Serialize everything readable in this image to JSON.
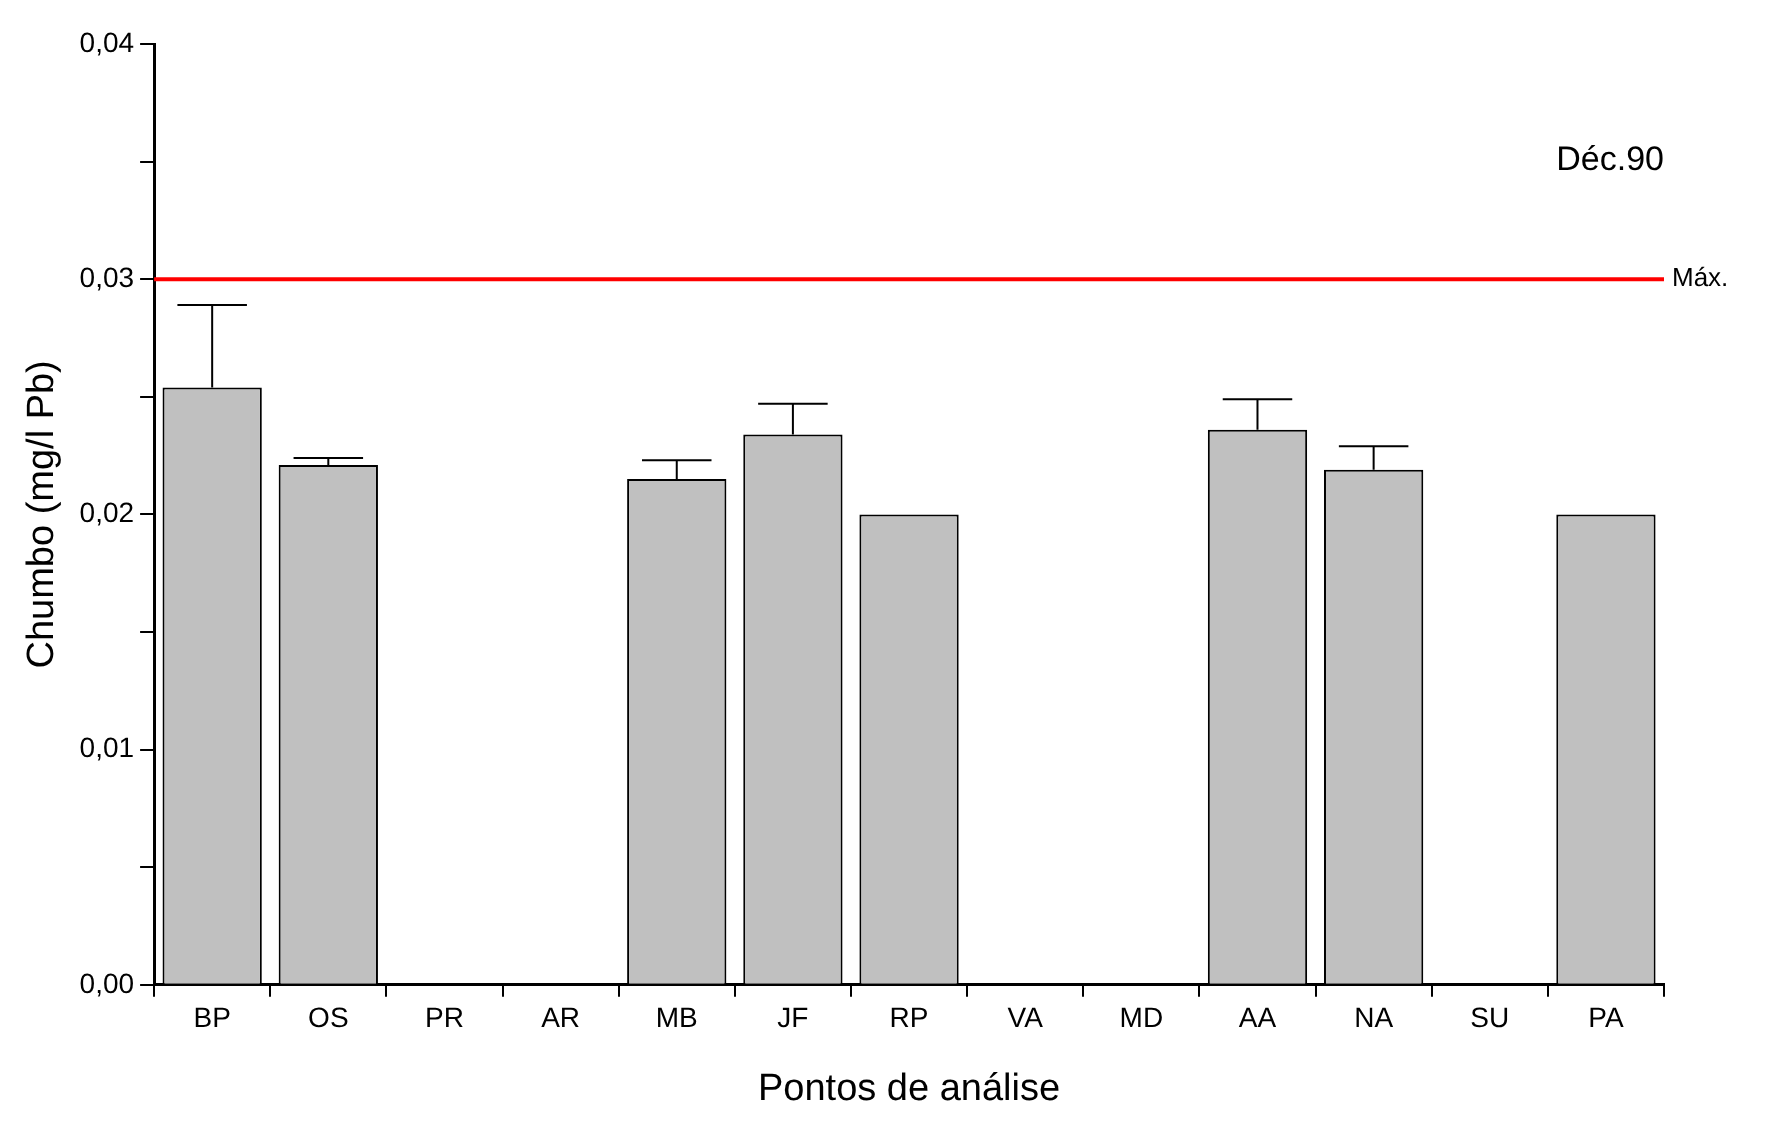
{
  "chart_data": {
    "type": "bar",
    "xlabel": "Pontos de análise",
    "ylabel": "Chumbo (mg/l Pb)",
    "categories": [
      "BP",
      "OS",
      "PR",
      "AR",
      "MB",
      "JF",
      "RP",
      "VA",
      "MD",
      "AA",
      "NA",
      "SU",
      "PA"
    ],
    "values": [
      0.0254,
      0.0221,
      0,
      0,
      0.0215,
      0.0234,
      0.02,
      0,
      0,
      0.0236,
      0.0219,
      0,
      0.02
    ],
    "errors": [
      [
        0.0254,
        0.0289
      ],
      [
        0.0221,
        0.0224
      ],
      null,
      null,
      [
        0.0215,
        0.0223
      ],
      [
        0.0234,
        0.0247
      ],
      null,
      null,
      null,
      [
        0.0236,
        0.0249
      ],
      [
        0.0219,
        0.0229
      ],
      null,
      null
    ],
    "color": "#c0c0c0",
    "ylim": [
      0,
      0.04
    ],
    "yticks": [
      {
        "value": 0,
        "label": "0,00"
      },
      {
        "value": 0.005,
        "label": null
      },
      {
        "value": 0.01,
        "label": "0,01"
      },
      {
        "value": 0.015,
        "label": null
      },
      {
        "value": 0.02,
        "label": "0,02"
      },
      {
        "value": 0.025,
        "label": null
      },
      {
        "value": 0.03,
        "label": "0,03"
      },
      {
        "value": 0.035,
        "label": null
      },
      {
        "value": 0.04,
        "label": "0,04"
      }
    ],
    "ref_lines": [
      {
        "axis": "y",
        "value": 0.03,
        "label": "Máx.",
        "color": "#ff0000"
      }
    ],
    "annotations": [
      "Déc.90"
    ],
    "grid": false,
    "legend": false
  }
}
